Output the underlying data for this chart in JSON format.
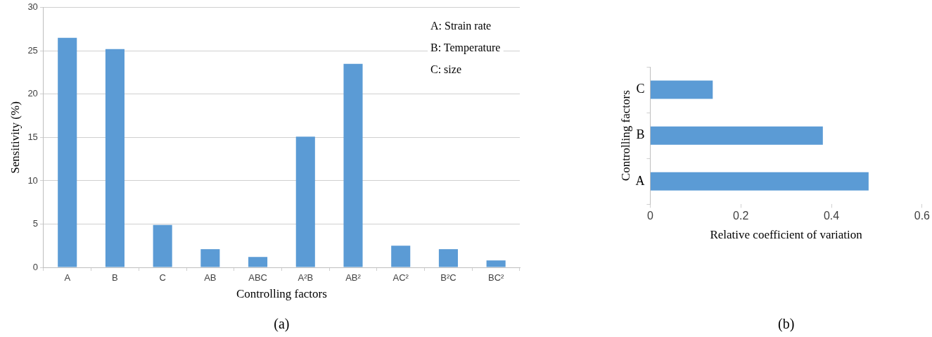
{
  "chart_data": [
    {
      "type": "bar",
      "xlabel": "Controlling factors",
      "ylabel": "Sensitivity (%)",
      "categories": [
        "A",
        "B",
        "C",
        "AB",
        "ABC",
        "A²B",
        "AB²",
        "AC²",
        "B²C",
        "BC²"
      ],
      "values": [
        26.5,
        25.2,
        4.9,
        2.1,
        1.2,
        15.1,
        23.5,
        2.5,
        2.1,
        0.8
      ],
      "color": "#5b9bd5",
      "ylim": [
        0,
        30
      ],
      "yticks": [
        0,
        5,
        10,
        15,
        20,
        25,
        30
      ],
      "grid": "y",
      "annotations": [
        "A: Strain rate",
        "B: Temperature",
        "C: size",
        "(a)"
      ]
    },
    {
      "type": "bar",
      "orientation": "horizontal",
      "xlabel": "Relative coefficient of variation",
      "ylabel": "Controlling factors",
      "categories": [
        "C",
        "B",
        "A"
      ],
      "values": [
        0.138,
        0.381,
        0.482
      ],
      "color": "#5b9bd5",
      "xlim": [
        0,
        0.6
      ],
      "xticks": [
        0,
        0.2,
        0.4,
        0.6
      ],
      "grid": false,
      "annotations": [
        "(b)"
      ]
    }
  ]
}
